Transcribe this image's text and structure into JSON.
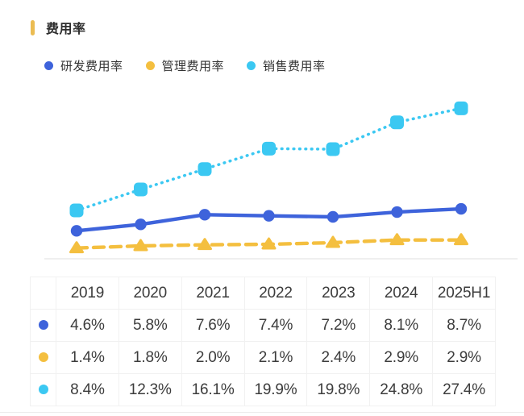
{
  "header": {
    "title": "费用率"
  },
  "accent_color": "#EBBC52",
  "chart_data": {
    "type": "line",
    "title": "费用率",
    "categories": [
      "2019",
      "2020",
      "2021",
      "2022",
      "2023",
      "2024",
      "2025H1"
    ],
    "series": [
      {
        "name": "研发费用率",
        "color": "#3E63DB",
        "line_style": "solid",
        "marker": "circle",
        "values": [
          4.6,
          5.8,
          7.6,
          7.4,
          7.2,
          8.1,
          8.7
        ]
      },
      {
        "name": "管理费用率",
        "color": "#F4BF3F",
        "line_style": "dashed",
        "marker": "triangle",
        "values": [
          1.4,
          1.8,
          2.0,
          2.1,
          2.4,
          2.9,
          2.9
        ]
      },
      {
        "name": "销售费用率",
        "color": "#3BC8F2",
        "line_style": "dotted",
        "marker": "square",
        "values": [
          8.4,
          12.3,
          16.1,
          19.9,
          19.8,
          24.8,
          27.4
        ]
      }
    ],
    "unit": "%",
    "ylim": [
      0,
      30
    ],
    "grid": false,
    "legend_position": "top",
    "axis_color": "#eaeaea"
  },
  "table": {
    "columns": [
      "",
      "2019",
      "2020",
      "2021",
      "2022",
      "2023",
      "2024",
      "2025H1"
    ],
    "rows": [
      {
        "series": "研发费用率",
        "dot_color": "#3E63DB",
        "values": [
          "4.6%",
          "5.8%",
          "7.6%",
          "7.4%",
          "7.2%",
          "8.1%",
          "8.7%"
        ]
      },
      {
        "series": "管理费用率",
        "dot_color": "#F4BF3F",
        "values": [
          "1.4%",
          "1.8%",
          "2.0%",
          "2.1%",
          "2.4%",
          "2.9%",
          "2.9%"
        ]
      },
      {
        "series": "销售费用率",
        "dot_color": "#3BC8F2",
        "values": [
          "8.4%",
          "12.3%",
          "16.1%",
          "19.9%",
          "19.8%",
          "24.8%",
          "27.4%"
        ]
      }
    ]
  }
}
